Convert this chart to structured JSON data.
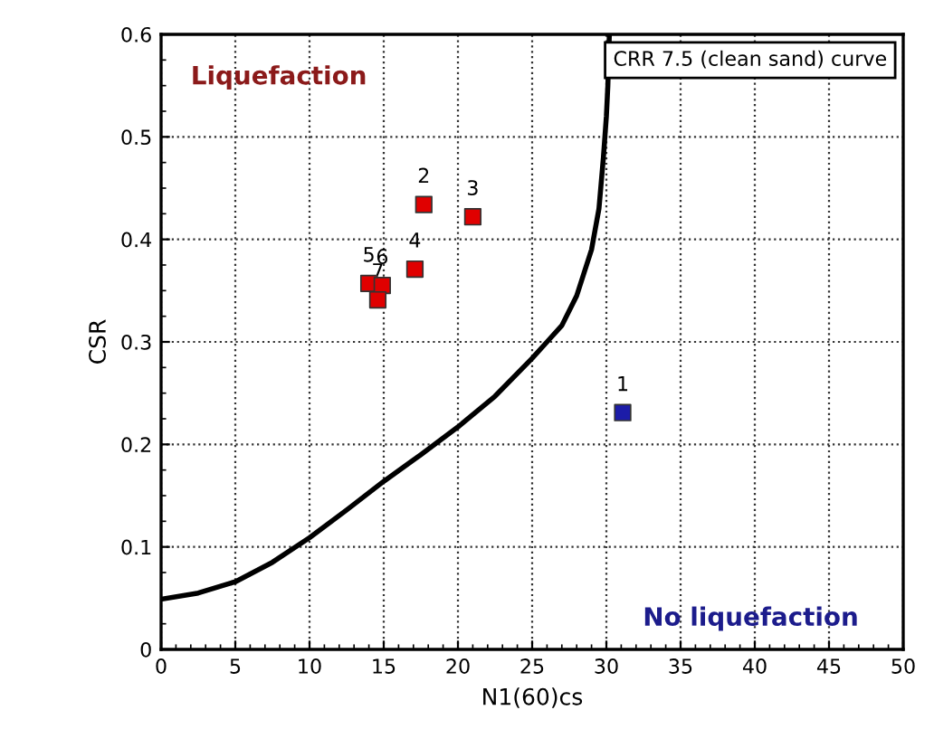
{
  "chart_data": {
    "type": "scatter",
    "xlabel": "N1(60)cs",
    "ylabel": "CSR",
    "xlim": [
      0,
      50
    ],
    "xticks": [
      0,
      5,
      10,
      15,
      20,
      25,
      30,
      35,
      40,
      45,
      50
    ],
    "ylim": [
      0,
      0.6
    ],
    "yticks": [
      0,
      0.1,
      0.2,
      0.3,
      0.4,
      0.5,
      0.6
    ],
    "grid": true,
    "legend": "top right",
    "marker": "square",
    "series": [
      {
        "name": "CRR 7.5 (clean sand) curve",
        "type": "line",
        "color": "#000000",
        "line_style": "solid",
        "marker": "none",
        "x": [
          0,
          2.5,
          5,
          7.5,
          10,
          12.5,
          15,
          17.5,
          20,
          22.5,
          25,
          26,
          27,
          28,
          29,
          29.5,
          29.8,
          30,
          30.1,
          30.2
        ],
        "values": [
          0.049,
          0.055,
          0.066,
          0.085,
          0.109,
          0.136,
          0.164,
          0.19,
          0.217,
          0.247,
          0.284,
          0.3,
          0.316,
          0.345,
          0.39,
          0.43,
          0.48,
          0.52,
          0.55,
          0.6
        ]
      },
      {
        "x": [
          31.1,
          17.7,
          21.0,
          17.1,
          14.0,
          14.9,
          14.6
        ],
        "values": [
          0.231,
          0.434,
          0.422,
          0.371,
          0.357,
          0.355,
          0.341
        ],
        "colors": [
          "#1c1ca8",
          "#e00000",
          "#e00000",
          "#e00000",
          "#e00000",
          "#e00000",
          "#e00000"
        ]
      }
    ],
    "annotations": [
      "Liquefaction",
      "No liquefaction",
      {
        "text": "1",
        "x": 31.1,
        "y": 0.231
      },
      {
        "text": "2",
        "x": 17.7,
        "y": 0.434
      },
      {
        "text": "3",
        "x": 21.0,
        "y": 0.422
      },
      {
        "text": "4",
        "x": 17.1,
        "y": 0.371
      },
      {
        "text": "5",
        "x": 14.0,
        "y": 0.357
      },
      {
        "text": "6",
        "x": 14.9,
        "y": 0.355
      },
      {
        "text": "7",
        "x": 14.6,
        "y": 0.341
      }
    ]
  }
}
